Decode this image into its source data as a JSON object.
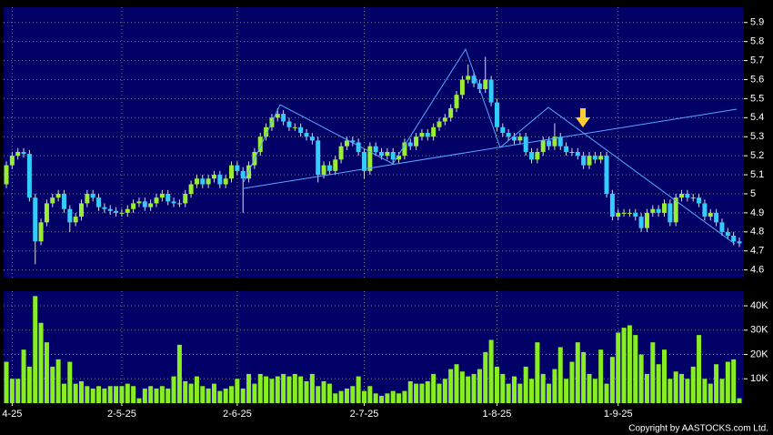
{
  "chart_data": [
    {
      "type": "candlestick",
      "up_color": "#99ee33",
      "down_color": "#33ccff",
      "ylim": [
        4.56,
        5.98
      ],
      "yticks": [
        4.6,
        4.7,
        4.8,
        4.9,
        5,
        5.1,
        5.2,
        5.3,
        5.4,
        5.5,
        5.6,
        5.7,
        5.8,
        5.9
      ],
      "grid": true,
      "open": [
        5.05,
        5.15,
        5.2,
        5.22,
        5.21,
        4.98,
        4.75,
        4.85,
        4.95,
        4.98,
        5.0,
        4.92,
        4.85,
        4.88,
        4.95,
        5.0,
        4.98,
        4.93,
        4.92,
        4.91,
        4.9,
        4.9,
        4.92,
        4.95,
        4.96,
        4.93,
        4.95,
        4.98,
        5.0,
        4.96,
        4.95,
        4.95,
        5.0,
        5.05,
        5.08,
        5.05,
        5.08,
        5.1,
        5.05,
        5.08,
        5.15,
        5.12,
        5.08,
        5.15,
        5.22,
        5.3,
        5.35,
        5.4,
        5.42,
        5.38,
        5.35,
        5.35,
        5.32,
        5.3,
        5.28,
        5.1,
        5.15,
        5.12,
        5.18,
        5.25,
        5.28,
        5.27,
        5.22,
        5.12,
        5.25,
        5.22,
        5.2,
        5.22,
        5.18,
        5.2,
        5.27,
        5.25,
        5.3,
        5.32,
        5.3,
        5.35,
        5.38,
        5.4,
        5.45,
        5.52,
        5.6,
        5.62,
        5.58,
        5.55,
        5.6,
        5.48,
        5.35,
        5.32,
        5.3,
        5.28,
        5.3,
        5.22,
        5.18,
        5.22,
        5.28,
        5.25,
        5.3,
        5.25,
        5.22,
        5.22,
        5.2,
        5.15,
        5.2,
        5.18,
        5.2,
        5.0,
        4.88,
        4.9,
        4.9,
        4.9,
        4.88,
        4.82,
        4.9,
        4.92,
        4.9,
        4.95,
        4.85,
        4.98,
        5.0,
        4.98,
        4.98,
        4.95,
        4.88,
        4.9,
        4.85,
        4.8,
        4.78,
        4.75
      ],
      "high": [
        5.17,
        5.22,
        5.24,
        5.24,
        5.23,
        5.0,
        4.87,
        4.97,
        5.0,
        5.02,
        5.02,
        4.94,
        4.9,
        4.97,
        5.02,
        5.02,
        5.0,
        4.95,
        4.94,
        4.93,
        4.92,
        4.94,
        4.97,
        4.98,
        4.98,
        4.97,
        5.0,
        5.02,
        5.02,
        4.98,
        4.97,
        5.02,
        5.07,
        5.1,
        5.1,
        5.1,
        5.12,
        5.12,
        5.1,
        5.17,
        5.17,
        5.14,
        5.17,
        5.24,
        5.32,
        5.37,
        5.42,
        5.45,
        5.44,
        5.4,
        5.37,
        5.37,
        5.34,
        5.32,
        5.3,
        5.17,
        5.17,
        5.2,
        5.27,
        5.3,
        5.3,
        5.29,
        5.24,
        5.27,
        5.27,
        5.24,
        5.24,
        5.24,
        5.22,
        5.29,
        5.29,
        5.32,
        5.34,
        5.34,
        5.37,
        5.4,
        5.42,
        5.47,
        5.54,
        5.62,
        5.68,
        5.64,
        5.6,
        5.72,
        5.62,
        5.5,
        5.37,
        5.34,
        5.32,
        5.32,
        5.32,
        5.24,
        5.24,
        5.3,
        5.3,
        5.37,
        5.32,
        5.27,
        5.24,
        5.24,
        5.22,
        5.22,
        5.22,
        5.22,
        5.22,
        5.02,
        4.92,
        4.92,
        4.92,
        4.92,
        4.9,
        4.92,
        4.94,
        4.94,
        4.97,
        4.97,
        5.0,
        5.02,
        5.02,
        5.0,
        5.0,
        4.97,
        4.92,
        4.92,
        4.87,
        4.82,
        4.8,
        4.77
      ],
      "low": [
        5.03,
        5.13,
        5.18,
        5.19,
        4.96,
        4.63,
        4.73,
        4.83,
        4.93,
        4.96,
        4.9,
        4.8,
        4.83,
        4.86,
        4.93,
        4.96,
        4.91,
        4.9,
        4.89,
        4.88,
        4.88,
        4.88,
        4.9,
        4.93,
        4.91,
        4.91,
        4.93,
        4.96,
        4.94,
        4.93,
        4.93,
        4.93,
        4.98,
        5.03,
        5.03,
        5.03,
        5.06,
        5.03,
        5.03,
        5.06,
        5.1,
        4.9,
        5.06,
        5.13,
        5.2,
        5.28,
        5.33,
        5.38,
        5.36,
        5.33,
        5.33,
        5.3,
        5.28,
        5.26,
        5.06,
        5.08,
        5.1,
        5.1,
        5.16,
        5.23,
        5.25,
        5.2,
        5.08,
        5.1,
        5.2,
        5.18,
        5.18,
        5.16,
        5.16,
        5.18,
        5.23,
        5.23,
        5.28,
        5.28,
        5.28,
        5.33,
        5.36,
        5.38,
        5.43,
        5.5,
        5.58,
        5.56,
        5.53,
        5.53,
        5.46,
        5.33,
        5.3,
        5.28,
        5.26,
        5.26,
        5.2,
        5.16,
        5.16,
        5.2,
        5.23,
        5.23,
        5.23,
        5.2,
        5.2,
        5.18,
        5.13,
        5.13,
        5.16,
        5.16,
        4.98,
        4.86,
        4.86,
        4.88,
        4.88,
        4.86,
        4.8,
        4.8,
        4.88,
        4.88,
        4.88,
        4.83,
        4.83,
        4.96,
        4.96,
        4.96,
        4.93,
        4.86,
        4.86,
        4.83,
        4.78,
        4.76,
        4.73,
        4.72
      ],
      "close": [
        5.15,
        5.2,
        5.22,
        5.21,
        4.98,
        4.75,
        4.85,
        4.95,
        4.98,
        5.0,
        4.92,
        4.85,
        4.88,
        4.95,
        5.0,
        4.98,
        4.93,
        4.92,
        4.91,
        4.9,
        4.9,
        4.92,
        4.95,
        4.96,
        4.93,
        4.95,
        4.98,
        5.0,
        4.96,
        4.95,
        4.95,
        5.0,
        5.05,
        5.08,
        5.05,
        5.08,
        5.1,
        5.05,
        5.08,
        5.15,
        5.12,
        5.08,
        5.15,
        5.22,
        5.3,
        5.35,
        5.4,
        5.42,
        5.38,
        5.35,
        5.35,
        5.32,
        5.3,
        5.28,
        5.1,
        5.15,
        5.12,
        5.18,
        5.25,
        5.28,
        5.27,
        5.22,
        5.12,
        5.25,
        5.22,
        5.2,
        5.22,
        5.18,
        5.2,
        5.27,
        5.25,
        5.3,
        5.32,
        5.3,
        5.35,
        5.38,
        5.4,
        5.45,
        5.52,
        5.6,
        5.62,
        5.58,
        5.55,
        5.6,
        5.48,
        5.35,
        5.32,
        5.3,
        5.28,
        5.3,
        5.22,
        5.18,
        5.22,
        5.28,
        5.25,
        5.3,
        5.25,
        5.22,
        5.22,
        5.2,
        5.15,
        5.2,
        5.18,
        5.2,
        5.0,
        4.88,
        4.9,
        4.9,
        4.9,
        4.88,
        4.82,
        4.9,
        4.92,
        4.9,
        4.95,
        4.85,
        4.98,
        5.0,
        4.98,
        4.98,
        4.95,
        4.88,
        4.9,
        4.85,
        4.8,
        4.78,
        4.75,
        4.74
      ]
    },
    {
      "type": "bar",
      "color": "#88ee22",
      "ylim": [
        0,
        46000
      ],
      "yticks": [
        {
          "value": 10000,
          "label": "10K"
        },
        {
          "value": 20000,
          "label": "20K"
        },
        {
          "value": 30000,
          "label": "30K"
        },
        {
          "value": 40000,
          "label": "40K"
        }
      ],
      "grid": true,
      "categories": [
        null,
        "4-25",
        null,
        null,
        null,
        null,
        null,
        null,
        null,
        null,
        null,
        null,
        null,
        null,
        null,
        null,
        null,
        null,
        null,
        null,
        "2-5-25",
        null,
        null,
        null,
        null,
        null,
        null,
        null,
        null,
        null,
        null,
        null,
        null,
        null,
        null,
        null,
        null,
        null,
        null,
        null,
        "2-6-25",
        null,
        null,
        null,
        null,
        null,
        null,
        null,
        null,
        null,
        null,
        null,
        null,
        null,
        null,
        null,
        null,
        null,
        null,
        null,
        null,
        null,
        "2-7-25",
        null,
        null,
        null,
        null,
        null,
        null,
        null,
        null,
        null,
        null,
        null,
        null,
        null,
        null,
        null,
        null,
        null,
        null,
        null,
        null,
        null,
        null,
        "1-8-25",
        null,
        null,
        null,
        null,
        null,
        null,
        null,
        null,
        null,
        null,
        null,
        null,
        null,
        null,
        null,
        null,
        null,
        null,
        null,
        null,
        "1-9-25",
        null,
        null,
        null,
        null,
        null,
        null,
        null,
        null,
        null,
        null,
        null,
        null,
        null,
        null,
        null,
        null,
        null,
        null,
        null,
        null,
        null
      ],
      "values": [
        17000,
        10000,
        10000,
        22000,
        15000,
        44000,
        33000,
        25000,
        15000,
        18000,
        8000,
        17000,
        8000,
        9000,
        7000,
        6000,
        7000,
        6000,
        7000,
        7000,
        7000,
        8000,
        7000,
        2000,
        6000,
        7000,
        6000,
        7000,
        6000,
        11000,
        24000,
        9000,
        8000,
        11000,
        7000,
        6000,
        8000,
        5000,
        6000,
        7000,
        10000,
        6000,
        12000,
        8000,
        12000,
        11000,
        10000,
        11000,
        12000,
        11000,
        12000,
        11000,
        9000,
        12000,
        7000,
        9000,
        8000,
        4000,
        5000,
        6000,
        7000,
        11000,
        5000,
        7000,
        4000,
        3000,
        4000,
        5000,
        4000,
        5000,
        9000,
        8000,
        8000,
        9000,
        12000,
        8000,
        10000,
        14000,
        16000,
        13000,
        11000,
        12000,
        14000,
        21000,
        26000,
        15000,
        12000,
        8000,
        11000,
        8000,
        15000,
        10000,
        25000,
        12000,
        8000,
        14000,
        23000,
        10000,
        17000,
        25000,
        21000,
        12000,
        10000,
        22000,
        8000,
        19000,
        29000,
        31000,
        32000,
        28000,
        20000,
        12000,
        25000,
        16000,
        22000,
        10000,
        13000,
        12000,
        10000,
        15000,
        28000,
        10000,
        8000,
        16000,
        10000,
        17000,
        18000,
        2000
      ]
    }
  ],
  "footer": "Copyright by AASTOCKS.com Ltd."
}
